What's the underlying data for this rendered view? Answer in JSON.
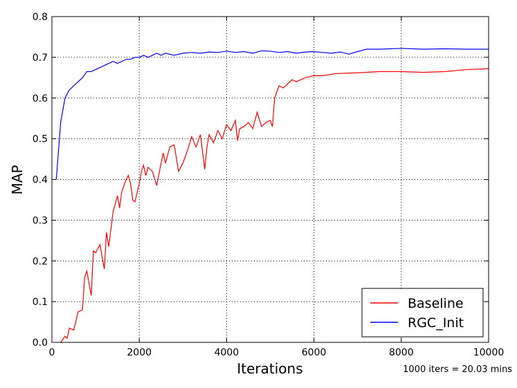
{
  "chart_data": {
    "type": "line",
    "xlabel": "Iterations",
    "ylabel": "MAP",
    "annotation": "1000 iters = 20.03 mins",
    "xlim": [
      0,
      10000
    ],
    "ylim": [
      0,
      0.8
    ],
    "xticks": [
      0,
      2000,
      4000,
      6000,
      8000,
      10000
    ],
    "yticks": [
      {
        "value": 0,
        "label": "0.0"
      },
      0.1,
      0.2,
      0.3,
      0.4,
      0.5,
      0.6,
      0.7,
      0.8
    ],
    "grid": true,
    "legend": "lower right",
    "series": [
      {
        "name": "Baseline",
        "color": "#ff0000",
        "x": [
          200,
          300,
          350,
          400,
          500,
          600,
          700,
          750,
          800,
          900,
          950,
          1000,
          1100,
          1200,
          1250,
          1300,
          1400,
          1500,
          1550,
          1600,
          1700,
          1750,
          1800,
          1850,
          1900,
          2000,
          2050,
          2100,
          2150,
          2200,
          2300,
          2400,
          2500,
          2550,
          2600,
          2700,
          2800,
          2900,
          3000,
          3100,
          3200,
          3300,
          3400,
          3500,
          3550,
          3600,
          3700,
          3800,
          3900,
          4000,
          4100,
          4200,
          4250,
          4300,
          4400,
          4500,
          4600,
          4700,
          4800,
          4900,
          5000,
          5050,
          5100,
          5200,
          5300,
          5400,
          5500,
          5600,
          5800,
          6000,
          6200,
          6500,
          7000,
          7500,
          8000,
          8500,
          9000,
          9500,
          10000
        ],
        "values": [
          0.0,
          0.015,
          0.01,
          0.035,
          0.03,
          0.075,
          0.08,
          0.16,
          0.175,
          0.115,
          0.225,
          0.22,
          0.24,
          0.18,
          0.27,
          0.235,
          0.32,
          0.36,
          0.33,
          0.37,
          0.4,
          0.41,
          0.39,
          0.35,
          0.345,
          0.39,
          0.42,
          0.435,
          0.41,
          0.43,
          0.42,
          0.385,
          0.44,
          0.465,
          0.44,
          0.48,
          0.485,
          0.42,
          0.44,
          0.47,
          0.505,
          0.48,
          0.51,
          0.425,
          0.48,
          0.51,
          0.49,
          0.52,
          0.5,
          0.535,
          0.52,
          0.545,
          0.495,
          0.525,
          0.53,
          0.54,
          0.525,
          0.565,
          0.53,
          0.54,
          0.545,
          0.53,
          0.6,
          0.63,
          0.625,
          0.635,
          0.645,
          0.64,
          0.65,
          0.655,
          0.655,
          0.66,
          0.662,
          0.665,
          0.665,
          0.663,
          0.665,
          0.67,
          0.672
        ]
      },
      {
        "name": "RGC_Init",
        "color": "#0000ff",
        "x": [
          100,
          200,
          300,
          400,
          500,
          600,
          700,
          800,
          900,
          1000,
          1100,
          1200,
          1300,
          1400,
          1500,
          1600,
          1700,
          1800,
          1900,
          2000,
          2100,
          2200,
          2300,
          2400,
          2500,
          2600,
          2800,
          3000,
          3200,
          3400,
          3600,
          3800,
          4000,
          4200,
          4400,
          4600,
          4800,
          5000,
          5200,
          5400,
          5600,
          5800,
          6000,
          6200,
          6400,
          6600,
          6800,
          7000,
          7200,
          7500,
          8000,
          8500,
          9000,
          9500,
          10000
        ],
        "values": [
          0.4,
          0.54,
          0.6,
          0.62,
          0.63,
          0.64,
          0.65,
          0.665,
          0.665,
          0.67,
          0.675,
          0.68,
          0.685,
          0.69,
          0.685,
          0.69,
          0.695,
          0.695,
          0.7,
          0.7,
          0.705,
          0.7,
          0.705,
          0.71,
          0.705,
          0.71,
          0.705,
          0.71,
          0.712,
          0.71,
          0.713,
          0.712,
          0.715,
          0.712,
          0.714,
          0.71,
          0.716,
          0.715,
          0.712,
          0.714,
          0.71,
          0.713,
          0.714,
          0.712,
          0.71,
          0.713,
          0.708,
          0.714,
          0.72,
          0.72,
          0.722,
          0.72,
          0.721,
          0.72,
          0.72
        ]
      }
    ]
  }
}
